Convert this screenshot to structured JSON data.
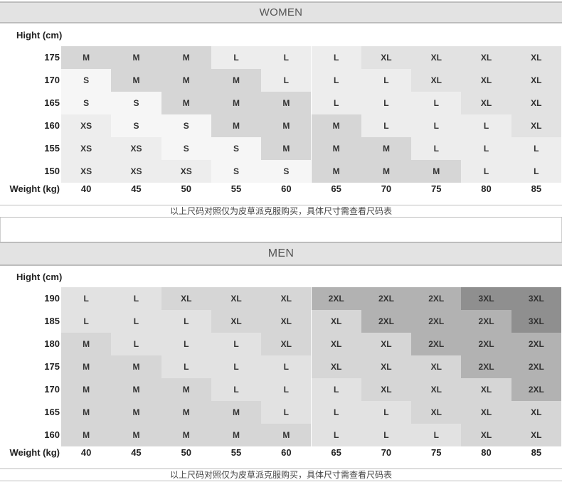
{
  "colors": {
    "c1": "#f6f6f6",
    "c2": "#ededed",
    "c3": "#e2e2e2",
    "c4": "#d6d6d6",
    "c5": "#b2b2b2",
    "c6": "#8f8f8f"
  },
  "women": {
    "title": "WOMEN",
    "height_label": "Hight (cm)",
    "weight_label": "Weight (kg)",
    "weights": [
      "40",
      "45",
      "50",
      "55",
      "60",
      "65",
      "70",
      "75",
      "80",
      "85"
    ],
    "rows": [
      {
        "height": "175",
        "sizes": [
          "M",
          "M",
          "M",
          "L",
          "L",
          "L",
          "XL",
          "XL",
          "XL",
          "XL"
        ],
        "shades": [
          "c4",
          "c4",
          "c4",
          "c2",
          "c2",
          "c2",
          "c3",
          "c3",
          "c3",
          "c3"
        ]
      },
      {
        "height": "170",
        "sizes": [
          "S",
          "M",
          "M",
          "M",
          "L",
          "L",
          "L",
          "XL",
          "XL",
          "XL"
        ],
        "shades": [
          "c1",
          "c4",
          "c4",
          "c4",
          "c2",
          "c2",
          "c2",
          "c3",
          "c3",
          "c3"
        ]
      },
      {
        "height": "165",
        "sizes": [
          "S",
          "S",
          "M",
          "M",
          "M",
          "L",
          "L",
          "L",
          "XL",
          "XL"
        ],
        "shades": [
          "c1",
          "c1",
          "c4",
          "c4",
          "c4",
          "c2",
          "c2",
          "c2",
          "c3",
          "c3"
        ]
      },
      {
        "height": "160",
        "sizes": [
          "XS",
          "S",
          "S",
          "M",
          "M",
          "M",
          "L",
          "L",
          "L",
          "XL"
        ],
        "shades": [
          "c2",
          "c1",
          "c1",
          "c4",
          "c4",
          "c4",
          "c2",
          "c2",
          "c2",
          "c3"
        ]
      },
      {
        "height": "155",
        "sizes": [
          "XS",
          "XS",
          "S",
          "S",
          "M",
          "M",
          "M",
          "L",
          "L",
          "L"
        ],
        "shades": [
          "c2",
          "c2",
          "c1",
          "c1",
          "c4",
          "c4",
          "c4",
          "c2",
          "c2",
          "c2"
        ]
      },
      {
        "height": "150",
        "sizes": [
          "XS",
          "XS",
          "XS",
          "S",
          "S",
          "M",
          "M",
          "M",
          "L",
          "L"
        ],
        "shades": [
          "c2",
          "c2",
          "c2",
          "c1",
          "c1",
          "c4",
          "c4",
          "c4",
          "c2",
          "c2"
        ]
      }
    ],
    "note": "以上尺码对照仅为皮草派克服购买，具体尺寸需查看尺码表"
  },
  "men": {
    "title": "MEN",
    "height_label": "Hight (cm)",
    "weight_label": "Weight (kg)",
    "weights": [
      "40",
      "45",
      "50",
      "55",
      "60",
      "65",
      "70",
      "75",
      "80",
      "85"
    ],
    "rows": [
      {
        "height": "190",
        "sizes": [
          "L",
          "L",
          "XL",
          "XL",
          "XL",
          "2XL",
          "2XL",
          "2XL",
          "3XL",
          "3XL"
        ],
        "shades": [
          "c3",
          "c3",
          "c4",
          "c4",
          "c4",
          "c5",
          "c5",
          "c5",
          "c6",
          "c6"
        ]
      },
      {
        "height": "185",
        "sizes": [
          "L",
          "L",
          "L",
          "XL",
          "XL",
          "XL",
          "2XL",
          "2XL",
          "2XL",
          "3XL"
        ],
        "shades": [
          "c3",
          "c3",
          "c3",
          "c4",
          "c4",
          "c4",
          "c5",
          "c5",
          "c5",
          "c6"
        ]
      },
      {
        "height": "180",
        "sizes": [
          "M",
          "L",
          "L",
          "L",
          "XL",
          "XL",
          "XL",
          "2XL",
          "2XL",
          "2XL"
        ],
        "shades": [
          "c4",
          "c3",
          "c3",
          "c3",
          "c4",
          "c4",
          "c4",
          "c5",
          "c5",
          "c5"
        ]
      },
      {
        "height": "175",
        "sizes": [
          "M",
          "M",
          "L",
          "L",
          "L",
          "XL",
          "XL",
          "XL",
          "2XL",
          "2XL"
        ],
        "shades": [
          "c4",
          "c4",
          "c3",
          "c3",
          "c3",
          "c4",
          "c4",
          "c4",
          "c5",
          "c5"
        ]
      },
      {
        "height": "170",
        "sizes": [
          "M",
          "M",
          "M",
          "L",
          "L",
          "L",
          "XL",
          "XL",
          "XL",
          "2XL"
        ],
        "shades": [
          "c4",
          "c4",
          "c4",
          "c3",
          "c3",
          "c3",
          "c4",
          "c4",
          "c4",
          "c5"
        ]
      },
      {
        "height": "165",
        "sizes": [
          "M",
          "M",
          "M",
          "M",
          "L",
          "L",
          "L",
          "XL",
          "XL",
          "XL"
        ],
        "shades": [
          "c4",
          "c4",
          "c4",
          "c4",
          "c3",
          "c3",
          "c3",
          "c4",
          "c4",
          "c4"
        ]
      },
      {
        "height": "160",
        "sizes": [
          "M",
          "M",
          "M",
          "M",
          "M",
          "L",
          "L",
          "L",
          "XL",
          "XL"
        ],
        "shades": [
          "c4",
          "c4",
          "c4",
          "c4",
          "c4",
          "c3",
          "c3",
          "c3",
          "c4",
          "c4"
        ]
      }
    ],
    "note": "以上尺码对照仅为皮草派克服购买，具体尺寸需查看尺码表"
  }
}
